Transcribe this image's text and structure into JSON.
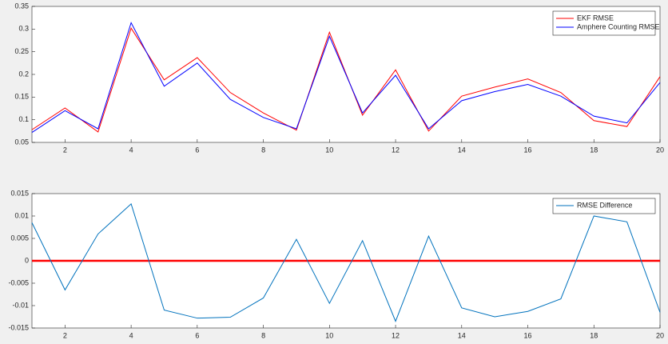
{
  "chart_data": [
    {
      "type": "line",
      "x": [
        1,
        2,
        3,
        4,
        5,
        6,
        7,
        8,
        9,
        10,
        11,
        12,
        13,
        14,
        15,
        16,
        17,
        18,
        19,
        20
      ],
      "series": [
        {
          "name": "EKF RMSE",
          "color": "#ff0000",
          "values": [
            0.078,
            0.126,
            0.073,
            0.302,
            0.188,
            0.237,
            0.16,
            0.115,
            0.077,
            0.293,
            0.11,
            0.21,
            0.075,
            0.152,
            0.172,
            0.19,
            0.16,
            0.098,
            0.085,
            0.195
          ]
        },
        {
          "name": "Amphere Counting RMSE",
          "color": "#0000ff",
          "values": [
            0.072,
            0.12,
            0.08,
            0.314,
            0.174,
            0.225,
            0.145,
            0.105,
            0.08,
            0.284,
            0.115,
            0.198,
            0.08,
            0.142,
            0.162,
            0.178,
            0.152,
            0.108,
            0.093,
            0.182
          ]
        }
      ],
      "xlim": [
        1,
        20
      ],
      "xticks": [
        2,
        4,
        6,
        8,
        10,
        12,
        14,
        16,
        18,
        20
      ],
      "ylim": [
        0.05,
        0.35
      ],
      "yticks": [
        0.05,
        0.1,
        0.15,
        0.2,
        0.25,
        0.3,
        0.35
      ],
      "legend": "upper right"
    },
    {
      "type": "line",
      "x": [
        1,
        2,
        3,
        4,
        5,
        6,
        7,
        8,
        9,
        10,
        11,
        12,
        13,
        14,
        15,
        16,
        17,
        18,
        19,
        20
      ],
      "series": [
        {
          "name": "RMSE Difference",
          "color": "#0072bd",
          "values": [
            0.0085,
            -0.0065,
            0.006,
            0.0127,
            -0.011,
            -0.0128,
            -0.0126,
            -0.0083,
            0.0048,
            -0.0095,
            0.0045,
            -0.0135,
            0.0055,
            -0.0105,
            -0.0125,
            -0.0113,
            -0.0085,
            0.01,
            0.0087,
            -0.0115
          ]
        }
      ],
      "hline": {
        "value": 0,
        "color": "#ff0000"
      },
      "xlim": [
        1,
        20
      ],
      "xticks": [
        2,
        4,
        6,
        8,
        10,
        12,
        14,
        16,
        18,
        20
      ],
      "ylim": [
        -0.015,
        0.015
      ],
      "yticks": [
        -0.015,
        -0.01,
        -0.005,
        0,
        0.005,
        0.01,
        0.015
      ],
      "legend": "upper right"
    }
  ]
}
